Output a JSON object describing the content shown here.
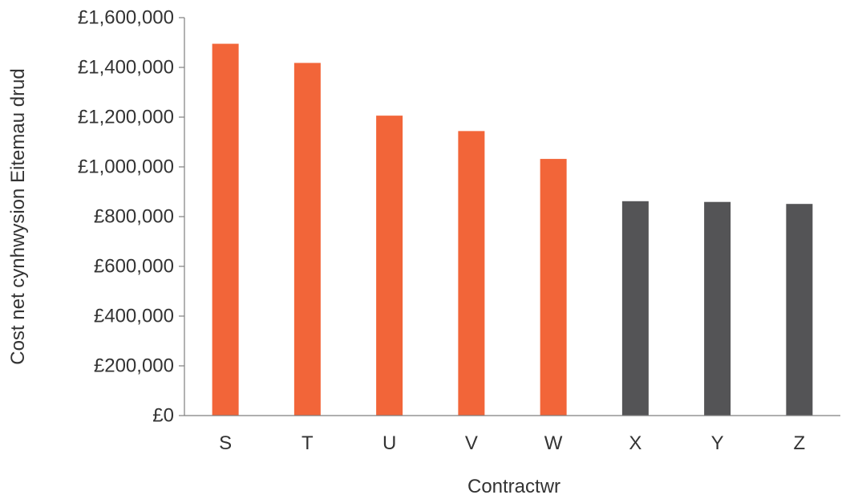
{
  "chart_data": {
    "type": "bar",
    "title": "",
    "xlabel": "Contractwr",
    "ylabel": "Cost net cynhwysion Eitemau drud",
    "categories": [
      "S",
      "T",
      "U",
      "V",
      "W",
      "X",
      "Y",
      "Z"
    ],
    "values": [
      1495000,
      1418000,
      1206000,
      1144000,
      1032000,
      862000,
      859000,
      851000
    ],
    "bar_colors": [
      "#f26539",
      "#f26539",
      "#f26539",
      "#f26539",
      "#f26539",
      "#545456",
      "#545456",
      "#545456"
    ],
    "ylim": [
      0,
      1600000
    ],
    "yticks": [
      0,
      200000,
      400000,
      600000,
      800000,
      1000000,
      1200000,
      1400000,
      1600000
    ],
    "ytick_labels": [
      "£0",
      "£200,000",
      "£400,000",
      "£600,000",
      "£800,000",
      "£1,000,000",
      "£1,200,000",
      "£1,400,000",
      "£1,600,000"
    ],
    "grid": false,
    "legend": "none"
  }
}
